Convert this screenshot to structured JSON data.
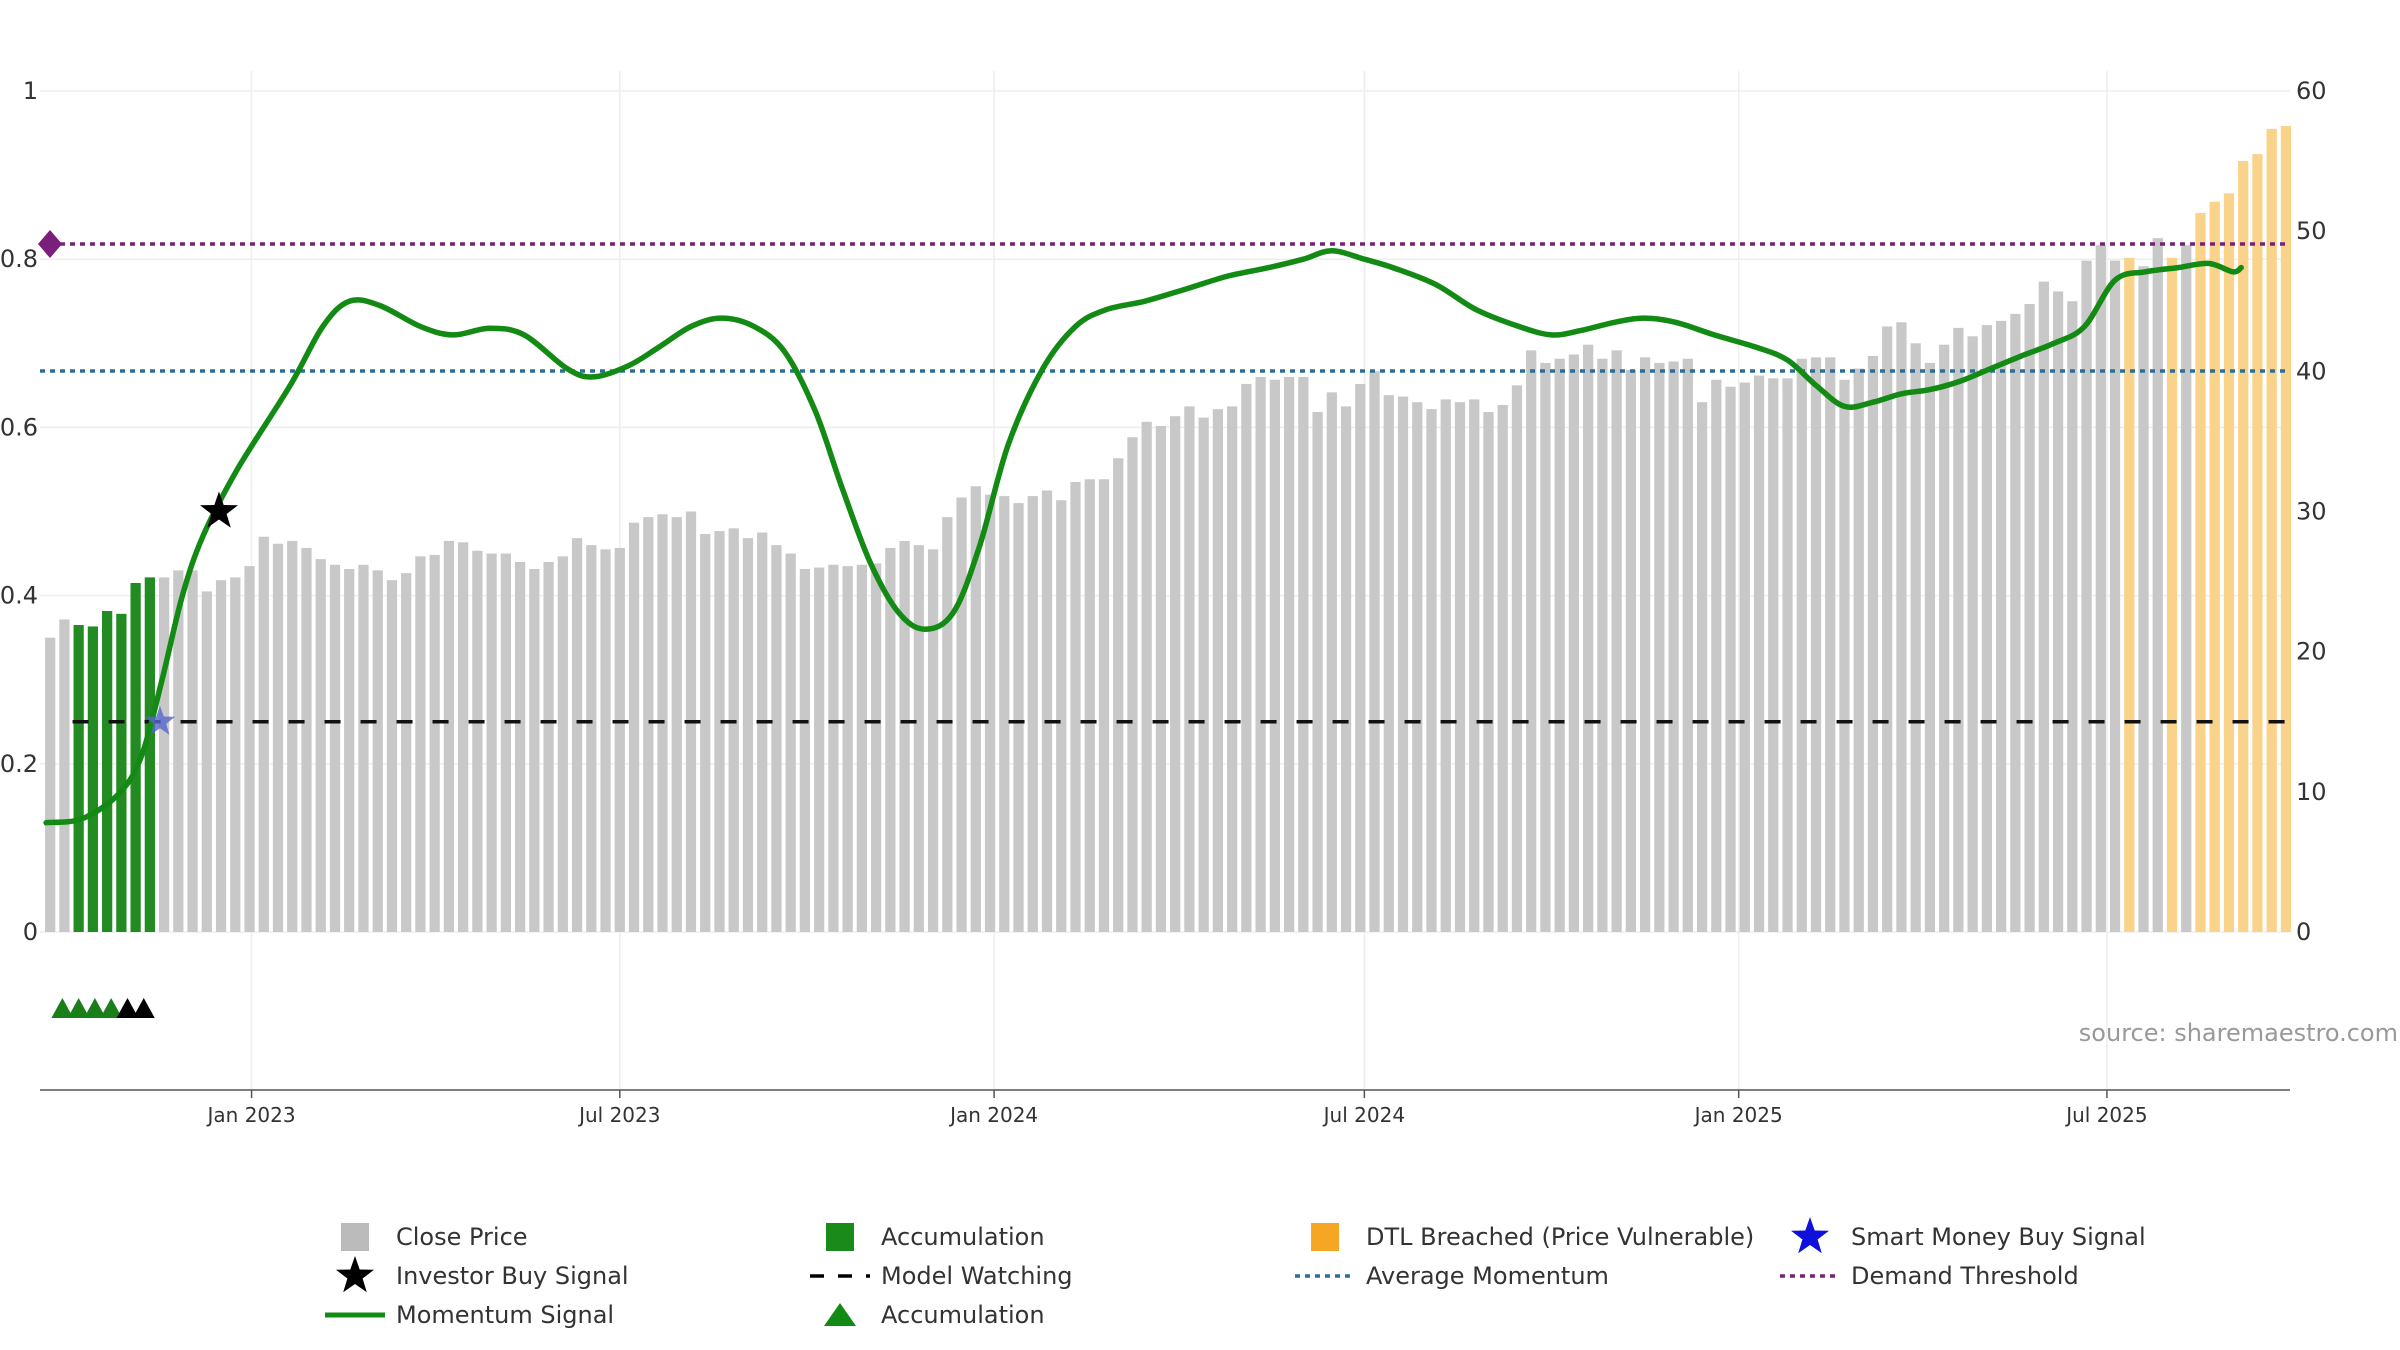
{
  "chart_data": {
    "type": "bar",
    "title": "",
    "xlabel": "",
    "ylabel": "",
    "source": "source: sharemaestro.com",
    "x_range": [
      "2022-09-19",
      "2025-09-29"
    ],
    "x_ticks": [
      {
        "date": "2023-01-01",
        "label": "Jan 2023"
      },
      {
        "date": "2023-07-01",
        "label": "Jul 2023"
      },
      {
        "date": "2024-01-01",
        "label": "Jan 2024"
      },
      {
        "date": "2024-07-01",
        "label": "Jul 2024"
      },
      {
        "date": "2025-01-01",
        "label": "Jan 2025"
      },
      {
        "date": "2025-07-01",
        "label": "Jul 2025"
      }
    ],
    "y_left": {
      "range": [
        0,
        1
      ],
      "ticks": [
        0,
        0.2,
        0.4,
        0.6,
        0.8,
        1
      ],
      "tick_labels": [
        "0",
        "0.2",
        "0.4",
        "0.6",
        "0.8",
        "1"
      ]
    },
    "y_right": {
      "range": [
        0,
        60
      ],
      "ticks": [
        0,
        10,
        20,
        30,
        40,
        50,
        60
      ],
      "tick_labels": [
        "0",
        "10",
        "20",
        "30",
        "40",
        "50",
        "60"
      ]
    },
    "grid": true,
    "close_price": {
      "name": "Close Price",
      "axis": "right",
      "start_date": "2022-09-24",
      "interval_days": 7,
      "values": [
        21,
        22.3,
        21.9,
        21.8,
        22.9,
        22.7,
        24.9,
        25.3,
        25.3,
        25.8,
        25.8,
        24.3,
        25.1,
        25.3,
        26.1,
        28.2,
        27.7,
        27.9,
        27.4,
        26.6,
        26.2,
        25.9,
        26.2,
        25.8,
        25.1,
        25.6,
        26.8,
        26.9,
        27.9,
        27.8,
        27.2,
        27,
        27,
        26.4,
        25.9,
        26.4,
        26.8,
        28.1,
        27.6,
        27.3,
        27.4,
        29.2,
        29.6,
        29.8,
        29.6,
        30,
        28.4,
        28.6,
        28.8,
        28.1,
        28.5,
        27.6,
        27,
        25.9,
        26,
        26.2,
        26.1,
        26.2,
        26.3,
        27.4,
        27.9,
        27.6,
        27.3,
        29.6,
        31,
        31.8,
        31.2,
        31.1,
        30.6,
        31.1,
        31.5,
        30.8,
        32.1,
        32.3,
        32.3,
        33.8,
        35.3,
        36.4,
        36.1,
        36.8,
        37.5,
        36.7,
        37.3,
        37.5,
        39.1,
        39.6,
        39.4,
        39.6,
        39.6,
        37.1,
        38.5,
        37.5,
        39.1,
        40,
        38.3,
        38.2,
        37.8,
        37.3,
        38,
        37.8,
        38,
        37.1,
        37.6,
        39,
        41.5,
        40.6,
        40.9,
        41.2,
        41.9,
        40.9,
        41.5,
        40.1,
        41,
        40.6,
        40.7,
        40.9,
        37.8,
        39.4,
        38.9,
        39.2,
        39.7,
        39.5,
        39.5,
        40.9,
        41,
        41,
        39.4,
        40.2,
        41.1,
        43.2,
        43.5,
        42,
        40.6,
        41.9,
        43.1,
        42.5,
        43.3,
        43.6,
        44.1,
        44.8,
        46.4,
        45.7,
        45,
        47.9,
        49,
        47.9,
        48.1,
        47.5,
        49.5,
        48.1,
        49,
        51.3,
        52.1,
        52.7,
        55,
        55.5,
        57.3,
        57.5
      ]
    },
    "accumulation_bar_indices": [
      2,
      3,
      4,
      5,
      6,
      7
    ],
    "dtl_breached_bar_indices": [
      146,
      149,
      151,
      152,
      153,
      154,
      155,
      156,
      157,
      158,
      159
    ],
    "momentum_signal": {
      "name": "Momentum Signal",
      "axis": "left",
      "points": [
        [
          "2022-09-22",
          0.13
        ],
        [
          "2022-10-10",
          0.135
        ],
        [
          "2022-10-28",
          0.165
        ],
        [
          "2022-11-08",
          0.21
        ],
        [
          "2022-11-18",
          0.3
        ],
        [
          "2022-11-28",
          0.4
        ],
        [
          "2022-12-08",
          0.47
        ],
        [
          "2022-12-25",
          0.55
        ],
        [
          "2023-01-20",
          0.65
        ],
        [
          "2023-02-05",
          0.72
        ],
        [
          "2023-02-18",
          0.75
        ],
        [
          "2023-03-05",
          0.745
        ],
        [
          "2023-03-25",
          0.72
        ],
        [
          "2023-04-10",
          0.71
        ],
        [
          "2023-04-28",
          0.718
        ],
        [
          "2023-05-15",
          0.71
        ],
        [
          "2023-06-05",
          0.67
        ],
        [
          "2023-06-18",
          0.66
        ],
        [
          "2023-07-05",
          0.673
        ],
        [
          "2023-07-20",
          0.695
        ],
        [
          "2023-08-05",
          0.72
        ],
        [
          "2023-08-20",
          0.73
        ],
        [
          "2023-09-05",
          0.72
        ],
        [
          "2023-09-20",
          0.69
        ],
        [
          "2023-10-05",
          0.62
        ],
        [
          "2023-10-18",
          0.53
        ],
        [
          "2023-11-01",
          0.44
        ],
        [
          "2023-11-15",
          0.38
        ],
        [
          "2023-11-28",
          0.36
        ],
        [
          "2023-12-12",
          0.38
        ],
        [
          "2023-12-25",
          0.46
        ],
        [
          "2024-01-08",
          0.58
        ],
        [
          "2024-01-25",
          0.67
        ],
        [
          "2024-02-10",
          0.72
        ],
        [
          "2024-02-25",
          0.74
        ],
        [
          "2024-03-15",
          0.75
        ],
        [
          "2024-04-05",
          0.765
        ],
        [
          "2024-04-25",
          0.78
        ],
        [
          "2024-05-15",
          0.79
        ],
        [
          "2024-06-01",
          0.8
        ],
        [
          "2024-06-15",
          0.81
        ],
        [
          "2024-07-01",
          0.8
        ],
        [
          "2024-07-15",
          0.79
        ],
        [
          "2024-08-05",
          0.77
        ],
        [
          "2024-08-25",
          0.74
        ],
        [
          "2024-09-15",
          0.72
        ],
        [
          "2024-10-01",
          0.71
        ],
        [
          "2024-10-15",
          0.715
        ],
        [
          "2024-11-01",
          0.725
        ],
        [
          "2024-11-15",
          0.73
        ],
        [
          "2024-12-01",
          0.725
        ],
        [
          "2024-12-20",
          0.71
        ],
        [
          "2025-01-10",
          0.695
        ],
        [
          "2025-01-25",
          0.68
        ],
        [
          "2025-02-08",
          0.65
        ],
        [
          "2025-02-22",
          0.625
        ],
        [
          "2025-03-08",
          0.63
        ],
        [
          "2025-03-22",
          0.64
        ],
        [
          "2025-04-05",
          0.645
        ],
        [
          "2025-04-20",
          0.655
        ],
        [
          "2025-05-05",
          0.67
        ],
        [
          "2025-05-20",
          0.685
        ],
        [
          "2025-06-05",
          0.7
        ],
        [
          "2025-06-20",
          0.72
        ],
        [
          "2025-07-05",
          0.775
        ],
        [
          "2025-07-20",
          0.785
        ],
        [
          "2025-08-05",
          0.79
        ],
        [
          "2025-08-20",
          0.795
        ],
        [
          "2025-09-01",
          0.785
        ],
        [
          "2025-09-05",
          0.79
        ]
      ]
    },
    "demand_threshold": {
      "name": "Demand Threshold",
      "axis": "left",
      "value": 0.818
    },
    "average_momentum": {
      "name": "Average Momentum",
      "axis": "left",
      "value": 0.667
    },
    "model_watching": {
      "name": "Model Watching",
      "axis": "left",
      "value": 0.25,
      "start_date": "2022-10-05",
      "end_date": "2025-09-29"
    },
    "investor_buy_signal": {
      "name": "Investor Buy Signal",
      "axis": "left",
      "date": "2022-12-16",
      "value": 0.5
    },
    "smart_money_buy_signal": {
      "name": "Smart Money Buy Signal",
      "axis": "left",
      "date": "2022-11-17",
      "value": 0.25
    },
    "accumulation_markers": [
      {
        "date": "2022-09-30",
        "color": "#1a7f1a"
      },
      {
        "date": "2022-10-08",
        "color": "#1a7f1a"
      },
      {
        "date": "2022-10-16",
        "color": "#1a7f1a"
      },
      {
        "date": "2022-10-24",
        "color": "#1a7f1a"
      },
      {
        "date": "2022-11-01",
        "color": "#000000"
      },
      {
        "date": "2022-11-09",
        "color": "#000000"
      }
    ],
    "legend": {
      "placement": "bottom",
      "entries": [
        {
          "label": "Close Price",
          "symbol": "square",
          "color": "#bbbbbb"
        },
        {
          "label": "Accumulation",
          "symbol": "square",
          "color": "#1a8a1a"
        },
        {
          "label": "DTL Breached (Price Vulnerable)",
          "symbol": "square",
          "color": "#f5a623"
        },
        {
          "label": "Smart Money Buy Signal",
          "symbol": "star",
          "color": "#1010dd"
        },
        {
          "label": "Investor Buy Signal",
          "symbol": "star",
          "color": "#000000"
        },
        {
          "label": "Model Watching",
          "symbol": "dash",
          "color": "#000000"
        },
        {
          "label": "Average Momentum",
          "symbol": "dot",
          "color": "#2a6f97"
        },
        {
          "label": "Demand Threshold",
          "symbol": "dot",
          "color": "#7a1f7a"
        },
        {
          "label": "Momentum Signal",
          "symbol": "line",
          "color": "#138a13"
        },
        {
          "label": "Accumulation",
          "symbol": "triangle",
          "color": "#138a13"
        }
      ]
    },
    "colors": {
      "close_price": "#c8c8c8",
      "accumulation": "#228b22",
      "dtl_breached": "#f9d38a",
      "momentum": "#138a13",
      "average_momentum": "#2a6f97",
      "demand_threshold": "#7a1f7a",
      "model_watching": "#111111"
    }
  }
}
